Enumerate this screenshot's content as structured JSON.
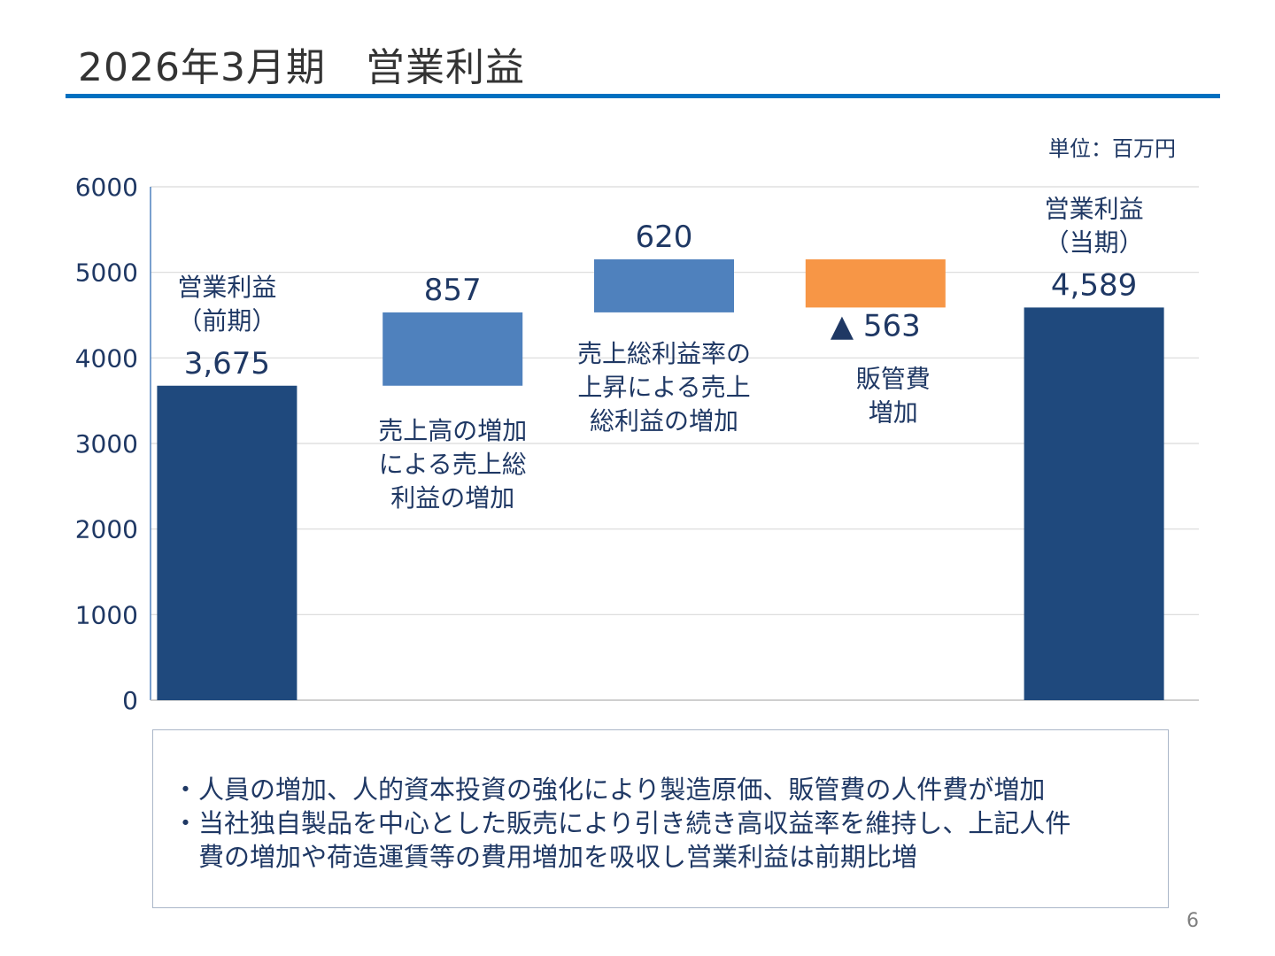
{
  "slide": {
    "title": "2026年3月期　営業利益",
    "unit": "単位：百万円",
    "page_number": "6",
    "accent_color": "#0070c0"
  },
  "notes": [
    "・人員の増加、人的資本投資の強化により製造原価、販管費の人件費が増加",
    "・当社独自製品を中心とした販売により引き続き高収益率を維持し、上記人件",
    "　費の増加や荷造運賃等の費用増加を吸収し営業利益は前期比増"
  ],
  "chart_data": {
    "type": "bar",
    "subtype": "waterfall",
    "ylim": [
      0,
      6000
    ],
    "yticks": [
      0,
      1000,
      2000,
      3000,
      4000,
      5000,
      6000
    ],
    "grid": true,
    "steps": [
      {
        "kind": "total",
        "start": 0,
        "end": 3675,
        "value_label": "3,675",
        "label_lines": [
          "営業利益",
          "（前期）"
        ],
        "color": "#1f497d"
      },
      {
        "kind": "increase",
        "start": 3675,
        "end": 4532,
        "value_label": "857",
        "label_lines": [
          "売上高の増加",
          "による売上総",
          "利益の増加"
        ],
        "color": "#4f81bd"
      },
      {
        "kind": "increase",
        "start": 4532,
        "end": 5152,
        "value_label": "620",
        "label_lines": [
          "売上総利益率の",
          "上昇による売上",
          "総利益の増加"
        ],
        "color": "#4f81bd"
      },
      {
        "kind": "decrease",
        "start": 5152,
        "end": 4589,
        "value_label": "▲ 563",
        "label_lines": [
          "販管費",
          "増加"
        ],
        "color": "#f79646"
      },
      {
        "kind": "total",
        "start": 0,
        "end": 4589,
        "value_label": "4,589",
        "label_lines": [
          "営業利益",
          "（当期）"
        ],
        "color": "#1f497d"
      }
    ]
  }
}
